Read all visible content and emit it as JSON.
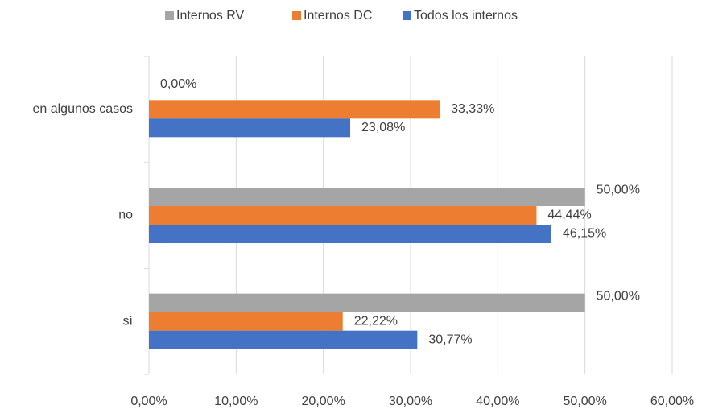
{
  "chart_data": {
    "type": "hbar",
    "categories": [
      "en algunos casos",
      "no",
      "sí"
    ],
    "series": [
      {
        "name": "Internos RV",
        "color": "#a5a5a5",
        "values": [
          0,
          50,
          50
        ],
        "value_labels": [
          "0,00%",
          "50,00%",
          "50,00%"
        ]
      },
      {
        "name": "Internos DC",
        "color": "#ed7d31",
        "values": [
          33.33,
          44.44,
          22.22
        ],
        "value_labels": [
          "33,33%",
          "44,44%",
          "22,22%"
        ]
      },
      {
        "name": "Todos los internos",
        "color": "#4472c4",
        "values": [
          23.08,
          46.15,
          30.77
        ],
        "value_labels": [
          "23,08%",
          "46,15%",
          "30,77%"
        ]
      }
    ],
    "xlim": [
      0,
      60
    ],
    "xticks": [
      {
        "value": 0,
        "label": "0,00%"
      },
      {
        "value": 10,
        "label": "10,00%"
      },
      {
        "value": 20,
        "label": "20,00%"
      },
      {
        "value": 30,
        "label": "30,00%"
      },
      {
        "value": 40,
        "label": "40,00%"
      },
      {
        "value": 50,
        "label": "50,00%"
      },
      {
        "value": 60,
        "label": "60,00%"
      }
    ],
    "grid": true,
    "legend": "top"
  }
}
